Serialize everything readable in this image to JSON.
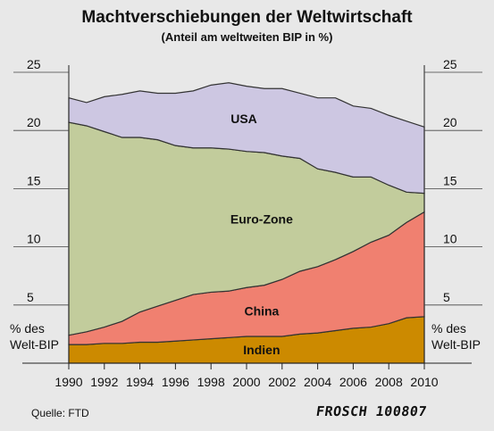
{
  "chart_data": {
    "type": "area",
    "title": "Machtverschiebungen der Weltwirtschaft",
    "subtitle": "(Anteil am weltweiten BIP in %)",
    "ylabel_left": [
      "% des",
      "Welt-BIP"
    ],
    "ylabel_right": [
      "% des",
      "Welt-BIP"
    ],
    "x": [
      1990,
      1991,
      1992,
      1993,
      1994,
      1995,
      1996,
      1997,
      1998,
      1999,
      2000,
      2001,
      2002,
      2003,
      2004,
      2005,
      2006,
      2007,
      2008,
      2009,
      2010
    ],
    "xticks": [
      1990,
      1992,
      1994,
      1996,
      1998,
      2000,
      2002,
      2004,
      2006,
      2008,
      2010
    ],
    "yticks": [
      5,
      10,
      15,
      20,
      25
    ],
    "ylim": [
      0,
      25
    ],
    "stacked": true,
    "series": [
      {
        "name": "Indien",
        "color": "#cc8a00",
        "values": [
          1.6,
          1.6,
          1.7,
          1.7,
          1.8,
          1.8,
          1.9,
          2.0,
          2.1,
          2.2,
          2.3,
          2.3,
          2.3,
          2.5,
          2.6,
          2.8,
          3.0,
          3.1,
          3.4,
          3.9,
          4.0
        ]
      },
      {
        "name": "China",
        "color": "#f08070",
        "values": [
          0.8,
          1.1,
          1.4,
          1.9,
          2.6,
          3.1,
          3.5,
          3.9,
          4.0,
          4.0,
          4.2,
          4.4,
          4.9,
          5.4,
          5.7,
          6.1,
          6.6,
          7.3,
          7.6,
          8.2,
          9.0
        ]
      },
      {
        "name": "Euro-Zone",
        "color": "#c2cc9c",
        "values": [
          18.3,
          17.7,
          16.8,
          15.8,
          15.0,
          14.3,
          13.3,
          12.6,
          12.4,
          12.2,
          11.7,
          11.4,
          10.6,
          9.7,
          8.4,
          7.5,
          6.4,
          5.6,
          4.3,
          2.6,
          1.6
        ]
      },
      {
        "name": "USA",
        "color": "#cdc7e2",
        "values": [
          2.1,
          2.0,
          3.0,
          3.7,
          4.0,
          4.0,
          4.5,
          4.9,
          5.4,
          5.7,
          5.6,
          5.5,
          5.8,
          5.6,
          6.1,
          6.4,
          6.1,
          5.9,
          6.0,
          6.1,
          5.7
        ]
      }
    ],
    "legend": "labels inside areas",
    "grid": false
  },
  "source": "Quelle: FTD",
  "signature": "FROSCH 100807"
}
